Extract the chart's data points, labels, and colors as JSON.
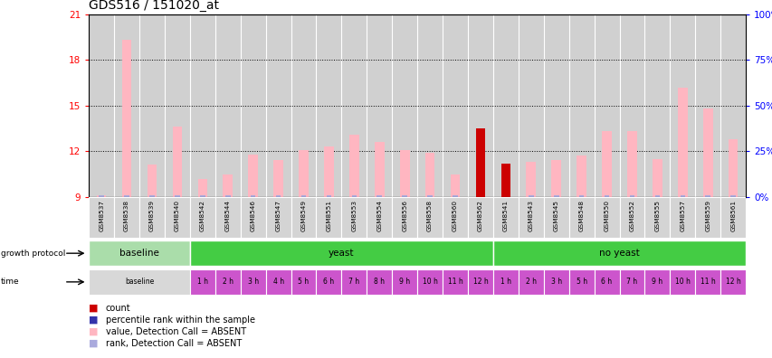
{
  "title": "GDS516 / 151020_at",
  "samples": [
    "GSM8537",
    "GSM8538",
    "GSM8539",
    "GSM8540",
    "GSM8542",
    "GSM8544",
    "GSM8546",
    "GSM8547",
    "GSM8549",
    "GSM8551",
    "GSM8553",
    "GSM8554",
    "GSM8556",
    "GSM8558",
    "GSM8560",
    "GSM8562",
    "GSM8541",
    "GSM8543",
    "GSM8545",
    "GSM8548",
    "GSM8550",
    "GSM8552",
    "GSM8555",
    "GSM8557",
    "GSM8559",
    "GSM8561"
  ],
  "pink_values": [
    9.1,
    19.3,
    11.1,
    13.6,
    10.2,
    10.5,
    11.8,
    11.4,
    12.1,
    12.3,
    13.1,
    12.6,
    12.1,
    11.9,
    10.5,
    9.1,
    11.2,
    11.3,
    11.4,
    11.7,
    13.3,
    13.3,
    11.5,
    16.2,
    14.8,
    12.8
  ],
  "rank_heights": [
    0.12,
    0.12,
    0.12,
    0.12,
    0.12,
    0.12,
    0.12,
    0.12,
    0.12,
    0.12,
    0.12,
    0.12,
    0.12,
    0.12,
    0.12,
    0.35,
    0.12,
    0.12,
    0.12,
    0.12,
    0.12,
    0.12,
    0.12,
    0.12,
    0.12,
    0.12
  ],
  "count_values": [
    0,
    0,
    0,
    0,
    0,
    0,
    0,
    0,
    0,
    0,
    0,
    0,
    0,
    0,
    0,
    13.5,
    11.2,
    0,
    0,
    0,
    0,
    0,
    0,
    0,
    0,
    0
  ],
  "ybase": 9,
  "ylim_left": [
    9,
    21
  ],
  "ylim_right": [
    0,
    100
  ],
  "yticks_left": [
    9,
    12,
    15,
    18,
    21
  ],
  "yticks_right": [
    0,
    25,
    50,
    75,
    100
  ],
  "pink_color": "#FFB6C1",
  "blue_color": "#3333AA",
  "rank_color": "#AAAADD",
  "red_color": "#CC0000",
  "col_bg_even": "#D0D0D0",
  "col_bg_odd": "#C8C8C8",
  "light_green": "#AADDAA",
  "bright_green": "#44CC44",
  "magenta": "#CC55CC",
  "light_gray": "#D8D8D8",
  "growth_groups": [
    {
      "label": "baseline",
      "start": 0,
      "end": 4,
      "color": "#AADDAA"
    },
    {
      "label": "yeast",
      "start": 4,
      "end": 16,
      "color": "#44CC44"
    },
    {
      "label": "no yeast",
      "start": 16,
      "end": 26,
      "color": "#44CC44"
    }
  ],
  "time_cells": [
    {
      "label": "baseline",
      "start": 0,
      "end": 4,
      "color": "#D8D8D8"
    },
    {
      "label": "1 h",
      "start": 4,
      "end": 5,
      "color": "#CC55CC"
    },
    {
      "label": "2 h",
      "start": 5,
      "end": 6,
      "color": "#CC55CC"
    },
    {
      "label": "3 h",
      "start": 6,
      "end": 7,
      "color": "#CC55CC"
    },
    {
      "label": "4 h",
      "start": 7,
      "end": 8,
      "color": "#CC55CC"
    },
    {
      "label": "5 h",
      "start": 8,
      "end": 9,
      "color": "#CC55CC"
    },
    {
      "label": "6 h",
      "start": 9,
      "end": 10,
      "color": "#CC55CC"
    },
    {
      "label": "7 h",
      "start": 10,
      "end": 11,
      "color": "#CC55CC"
    },
    {
      "label": "8 h",
      "start": 11,
      "end": 12,
      "color": "#CC55CC"
    },
    {
      "label": "9 h",
      "start": 12,
      "end": 13,
      "color": "#CC55CC"
    },
    {
      "label": "10 h",
      "start": 13,
      "end": 14,
      "color": "#CC55CC"
    },
    {
      "label": "11 h",
      "start": 14,
      "end": 15,
      "color": "#CC55CC"
    },
    {
      "label": "12 h",
      "start": 15,
      "end": 16,
      "color": "#CC55CC"
    },
    {
      "label": "1 h",
      "start": 16,
      "end": 17,
      "color": "#CC55CC"
    },
    {
      "label": "2 h",
      "start": 17,
      "end": 18,
      "color": "#CC55CC"
    },
    {
      "label": "3 h",
      "start": 18,
      "end": 19,
      "color": "#CC55CC"
    },
    {
      "label": "5 h",
      "start": 19,
      "end": 20,
      "color": "#CC55CC"
    },
    {
      "label": "6 h",
      "start": 20,
      "end": 21,
      "color": "#CC55CC"
    },
    {
      "label": "7 h",
      "start": 21,
      "end": 22,
      "color": "#CC55CC"
    },
    {
      "label": "9 h",
      "start": 22,
      "end": 23,
      "color": "#CC55CC"
    },
    {
      "label": "10 h",
      "start": 23,
      "end": 24,
      "color": "#CC55CC"
    },
    {
      "label": "11 h",
      "start": 24,
      "end": 25,
      "color": "#CC55CC"
    },
    {
      "label": "12 h",
      "start": 25,
      "end": 26,
      "color": "#CC55CC"
    }
  ],
  "legend_items": [
    {
      "color": "#CC0000",
      "label": "count"
    },
    {
      "color": "#3333AA",
      "label": "percentile rank within the sample"
    },
    {
      "color": "#FFB6C1",
      "label": "value, Detection Call = ABSENT"
    },
    {
      "color": "#AAAADD",
      "label": "rank, Detection Call = ABSENT"
    }
  ]
}
